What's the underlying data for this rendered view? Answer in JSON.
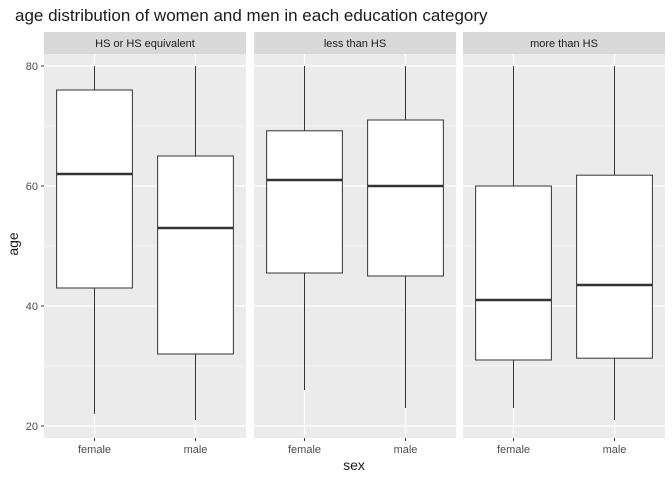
{
  "chart_data": {
    "type": "boxplot",
    "title": "age distribution of women and men in each education category",
    "xlabel": "sex",
    "ylabel": "age",
    "ylim": [
      18,
      82
    ],
    "yticks": [
      20,
      40,
      60,
      80
    ],
    "grid": true,
    "categories": [
      "female",
      "male"
    ],
    "facets": [
      {
        "name": "HS or HS equivalent",
        "boxes": [
          {
            "category": "female",
            "min": 22,
            "q1": 43,
            "median": 62,
            "q3": 76,
            "max": 80
          },
          {
            "category": "male",
            "min": 21,
            "q1": 32,
            "median": 53,
            "q3": 65,
            "max": 80
          }
        ]
      },
      {
        "name": "less than HS",
        "boxes": [
          {
            "category": "female",
            "min": 26,
            "q1": 45.5,
            "median": 61,
            "q3": 69.2,
            "max": 80
          },
          {
            "category": "male",
            "min": 23,
            "q1": 45,
            "median": 60,
            "q3": 71,
            "max": 80
          }
        ]
      },
      {
        "name": "more than HS",
        "boxes": [
          {
            "category": "female",
            "min": 23,
            "q1": 31,
            "median": 41,
            "q3": 60,
            "max": 80
          },
          {
            "category": "male",
            "min": 21,
            "q1": 31.3,
            "median": 43.5,
            "q3": 61.8,
            "max": 80
          }
        ]
      }
    ]
  },
  "colors": {
    "panel_background": "#ebebeb",
    "strip_background": "#d9d9d9",
    "grid_major": "#ffffff",
    "box_fill": "#ffffff",
    "box_line": "#333333"
  }
}
